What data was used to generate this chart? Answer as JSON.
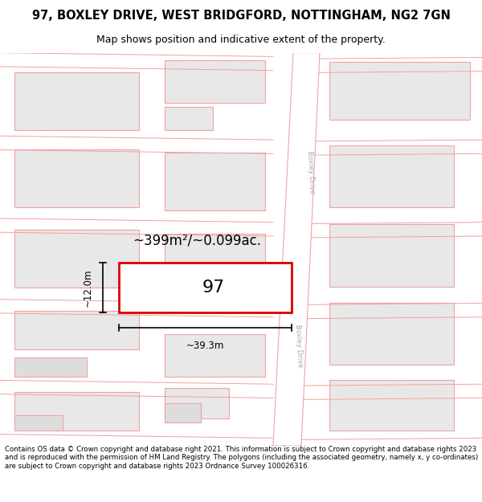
{
  "title": "97, BOXLEY DRIVE, WEST BRIDGFORD, NOTTINGHAM, NG2 7GN",
  "subtitle": "Map shows position and indicative extent of the property.",
  "footer_text": "Contains OS data © Crown copyright and database right 2021. This information is subject to Crown copyright and database rights 2023 and is reproduced with the permission of HM Land Registry. The polygons (including the associated geometry, namely x, y co-ordinates) are subject to Crown copyright and database rights 2023 Ordnance Survey 100026316.",
  "map_bg": "#ffffff",
  "plot_outline_color": "#dd0000",
  "road_line_color": "#f5a0a0",
  "road_fill_color": "#ffffff",
  "building_fill": "#e8e8e8",
  "building_outline": "#f5a0a0",
  "road_label_color": "#aaaaaa",
  "area_label": "~399m²/~0.099ac.",
  "plot_number": "97",
  "dim_width": "~39.3m",
  "dim_height": "~12.0m",
  "title_fontsize": 10.5,
  "subtitle_fontsize": 9,
  "footer_fontsize": 6.2
}
